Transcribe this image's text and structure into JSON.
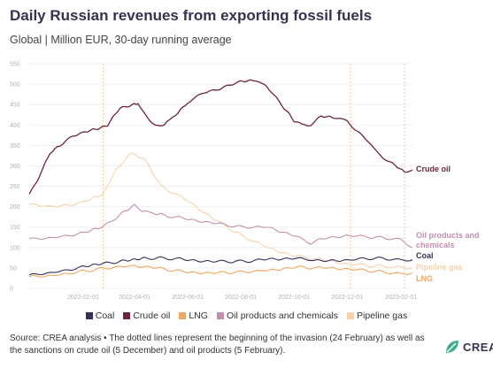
{
  "header": {
    "title": "Daily Russian revenues from exporting fossil fuels",
    "subtitle": "Global | Million EUR, 30-day running average"
  },
  "footer": {
    "source": "Source: CREA analysis • The dotted lines represent the beginning of the invasion (24 February) as well as the sanctions on crude oil (5 December) and oil products (5 February).",
    "logo_text": "CREA"
  },
  "colors": {
    "coal": "#35305a",
    "crude_oil": "#6e2242",
    "lng": "#f2a65e",
    "oil_products": "#c48fae",
    "pipeline_gas": "#f6d2ac",
    "event_line": "#f2c78c"
  },
  "chart_data": {
    "type": "line",
    "title": "Daily Russian revenues from exporting fossil fuels",
    "subtitle": "Global | Million EUR, 30-day running average",
    "xlabel": "",
    "ylabel": "",
    "x_range": [
      "2021-12-01",
      "2023-02-14"
    ],
    "ylim": [
      0,
      550
    ],
    "yticks": [
      0,
      50,
      100,
      150,
      200,
      250,
      300,
      350,
      400,
      450,
      500,
      550
    ],
    "xticks": [
      "2022-02-01",
      "2022-04-01",
      "2022-06-01",
      "2022-08-01",
      "2022-10-01",
      "2022-12-01",
      "2023-02-01"
    ],
    "grid": true,
    "legend_position": "bottom",
    "event_lines": [
      "2022-02-24",
      "2022-12-05",
      "2023-02-05"
    ],
    "series": [
      {
        "name": "Coal",
        "label": "Coal",
        "points": [
          [
            "2021-12-01",
            32
          ],
          [
            "2022-01-01",
            40
          ],
          [
            "2022-02-01",
            52
          ],
          [
            "2022-02-24",
            60
          ],
          [
            "2022-03-15",
            66
          ],
          [
            "2022-04-01",
            72
          ],
          [
            "2022-04-15",
            74
          ],
          [
            "2022-05-01",
            74
          ],
          [
            "2022-05-20",
            72
          ],
          [
            "2022-06-01",
            70
          ],
          [
            "2022-07-01",
            66
          ],
          [
            "2022-08-01",
            66
          ],
          [
            "2022-08-20",
            68
          ],
          [
            "2022-09-01",
            72
          ],
          [
            "2022-10-01",
            74
          ],
          [
            "2022-10-20",
            70
          ],
          [
            "2022-11-01",
            66
          ],
          [
            "2022-12-01",
            70
          ],
          [
            "2023-01-01",
            74
          ],
          [
            "2023-02-01",
            70
          ],
          [
            "2023-02-14",
            70
          ]
        ]
      },
      {
        "name": "Crude oil",
        "label": "Crude oil",
        "points": [
          [
            "2021-12-01",
            230
          ],
          [
            "2021-12-10",
            262
          ],
          [
            "2021-12-25",
            330
          ],
          [
            "2022-01-05",
            350
          ],
          [
            "2022-01-20",
            372
          ],
          [
            "2022-02-01",
            380
          ],
          [
            "2022-02-15",
            390
          ],
          [
            "2022-03-01",
            400
          ],
          [
            "2022-03-15",
            440
          ],
          [
            "2022-04-01",
            452
          ],
          [
            "2022-04-05",
            450
          ],
          [
            "2022-04-15",
            420
          ],
          [
            "2022-04-25",
            400
          ],
          [
            "2022-05-05",
            398
          ],
          [
            "2022-05-15",
            420
          ],
          [
            "2022-06-01",
            455
          ],
          [
            "2022-06-20",
            480
          ],
          [
            "2022-07-05",
            488
          ],
          [
            "2022-07-20",
            498
          ],
          [
            "2022-08-01",
            505
          ],
          [
            "2022-08-15",
            510
          ],
          [
            "2022-08-25",
            505
          ],
          [
            "2022-09-05",
            480
          ],
          [
            "2022-09-20",
            440
          ],
          [
            "2022-10-01",
            410
          ],
          [
            "2022-10-10",
            400
          ],
          [
            "2022-10-20",
            400
          ],
          [
            "2022-11-01",
            420
          ],
          [
            "2022-11-15",
            420
          ],
          [
            "2022-12-01",
            410
          ],
          [
            "2022-12-10",
            390
          ],
          [
            "2022-12-25",
            360
          ],
          [
            "2023-01-10",
            320
          ],
          [
            "2023-01-25",
            300
          ],
          [
            "2023-02-05",
            285
          ],
          [
            "2023-02-14",
            290
          ]
        ]
      },
      {
        "name": "LNG",
        "label": "LNG",
        "points": [
          [
            "2021-12-01",
            28
          ],
          [
            "2022-01-01",
            32
          ],
          [
            "2022-02-01",
            42
          ],
          [
            "2022-03-01",
            50
          ],
          [
            "2022-04-01",
            56
          ],
          [
            "2022-05-01",
            48
          ],
          [
            "2022-06-01",
            40
          ],
          [
            "2022-07-01",
            38
          ],
          [
            "2022-08-01",
            40
          ],
          [
            "2022-09-01",
            44
          ],
          [
            "2022-10-01",
            52
          ],
          [
            "2022-11-01",
            50
          ],
          [
            "2022-12-01",
            48
          ],
          [
            "2023-01-01",
            42
          ],
          [
            "2023-02-01",
            36
          ],
          [
            "2023-02-14",
            38
          ]
        ]
      },
      {
        "name": "Oil products and chemicals",
        "label": "Oil products and chemicals",
        "points": [
          [
            "2021-12-01",
            120
          ],
          [
            "2022-01-01",
            125
          ],
          [
            "2022-02-01",
            135
          ],
          [
            "2022-02-24",
            150
          ],
          [
            "2022-03-15",
            180
          ],
          [
            "2022-04-01",
            205
          ],
          [
            "2022-04-10",
            190
          ],
          [
            "2022-04-20",
            185
          ],
          [
            "2022-05-01",
            180
          ],
          [
            "2022-06-01",
            170
          ],
          [
            "2022-07-01",
            160
          ],
          [
            "2022-08-01",
            150
          ],
          [
            "2022-09-01",
            150
          ],
          [
            "2022-10-01",
            130
          ],
          [
            "2022-10-20",
            110
          ],
          [
            "2022-11-01",
            120
          ],
          [
            "2022-12-01",
            130
          ],
          [
            "2023-01-01",
            125
          ],
          [
            "2023-02-01",
            120
          ],
          [
            "2023-02-14",
            100
          ]
        ]
      },
      {
        "name": "Pipeline gas",
        "label": "Pipeline gas",
        "points": [
          [
            "2021-12-01",
            205
          ],
          [
            "2022-01-01",
            200
          ],
          [
            "2022-02-01",
            210
          ],
          [
            "2022-02-24",
            230
          ],
          [
            "2022-03-10",
            290
          ],
          [
            "2022-03-25",
            325
          ],
          [
            "2022-04-01",
            330
          ],
          [
            "2022-04-15",
            310
          ],
          [
            "2022-05-01",
            250
          ],
          [
            "2022-06-01",
            215
          ],
          [
            "2022-07-01",
            170
          ],
          [
            "2022-08-01",
            130
          ],
          [
            "2022-09-01",
            100
          ],
          [
            "2022-10-01",
            80
          ],
          [
            "2022-11-01",
            70
          ],
          [
            "2022-12-01",
            60
          ],
          [
            "2023-01-01",
            55
          ],
          [
            "2023-02-01",
            52
          ],
          [
            "2023-02-14",
            50
          ]
        ]
      }
    ]
  }
}
